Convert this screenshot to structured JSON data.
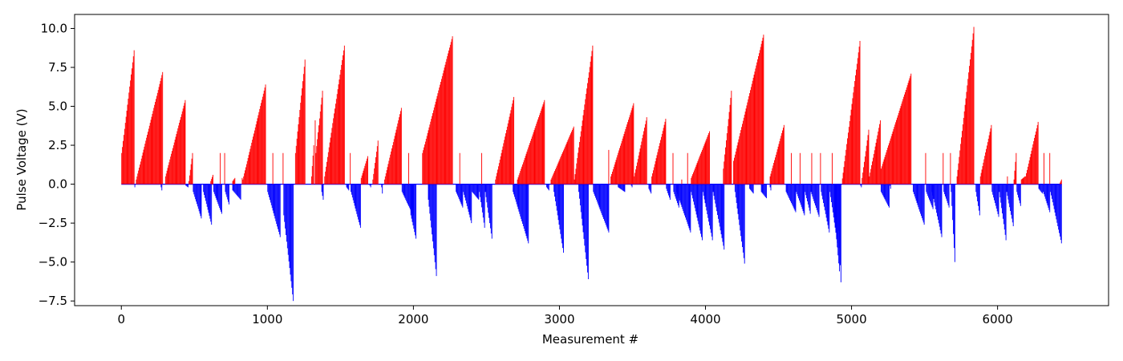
{
  "chart_data": {
    "type": "bar",
    "xlabel": "Measurement #",
    "ylabel": "Pulse Voltage (V)",
    "xlim": [
      -320,
      6760
    ],
    "ylim": [
      -7.8,
      10.9
    ],
    "xticks": [
      0,
      1000,
      2000,
      3000,
      4000,
      5000,
      6000
    ],
    "xtick_labels": [
      "0",
      "1000",
      "2000",
      "3000",
      "4000",
      "5000",
      "6000"
    ],
    "yticks": [
      -7.5,
      -5.0,
      -2.5,
      0.0,
      2.5,
      5.0,
      7.5,
      10.0
    ],
    "ytick_labels": [
      "−7.5",
      "−5.0",
      "−2.5",
      "0.0",
      "2.5",
      "5.0",
      "7.5",
      "10.0"
    ],
    "grid": false,
    "colors": {
      "positive": "#ff0000",
      "negative": "#0000ff",
      "zero_line": "#0000ff"
    },
    "series": [
      {
        "sign": "positive",
        "ramps": [
          [
            0,
            90,
            2.0,
            8.6
          ],
          [
            100,
            285,
            0.3,
            7.2
          ],
          [
            300,
            440,
            0.5,
            5.4
          ],
          [
            460,
            490,
            0.2,
            2.0
          ],
          [
            610,
            630,
            0.2,
            0.6
          ],
          [
            670,
            680,
            0.0,
            2.0
          ],
          [
            700,
            710,
            0.0,
            2.0
          ],
          [
            760,
            780,
            0.2,
            0.4
          ],
          [
            820,
            830,
            0.0,
            0.4
          ],
          [
            830,
            990,
            0.3,
            6.4
          ],
          [
            1030,
            1040,
            0.0,
            2.0
          ],
          [
            1100,
            1110,
            0.0,
            2.0
          ],
          [
            1190,
            1260,
            2.0,
            8.0
          ],
          [
            1300,
            1320,
            0.5,
            2.5
          ],
          [
            1320,
            1330,
            0.0,
            4.1
          ],
          [
            1330,
            1380,
            2.0,
            6.0
          ],
          [
            1390,
            1530,
            0.5,
            8.9
          ],
          [
            1560,
            1570,
            0.0,
            2.0
          ],
          [
            1640,
            1690,
            0.4,
            1.8
          ],
          [
            1720,
            1760,
            0.3,
            2.8
          ],
          [
            1800,
            1920,
            0.3,
            4.9
          ],
          [
            1960,
            1970,
            0.0,
            2.0
          ],
          [
            2060,
            2270,
            2.0,
            9.5
          ],
          [
            2310,
            2320,
            0.0,
            2.0
          ],
          [
            2460,
            2470,
            0.0,
            2.0
          ],
          [
            2560,
            2690,
            0.3,
            5.6
          ],
          [
            2710,
            2900,
            0.3,
            5.4
          ],
          [
            2940,
            3100,
            0.3,
            3.7
          ],
          [
            3100,
            3230,
            0.3,
            8.9
          ],
          [
            3330,
            3340,
            0.0,
            2.2
          ],
          [
            3350,
            3510,
            0.5,
            5.2
          ],
          [
            3510,
            3600,
            0.5,
            4.3
          ],
          [
            3630,
            3730,
            0.5,
            4.2
          ],
          [
            3770,
            3780,
            0.0,
            2.0
          ],
          [
            3830,
            3840,
            0.0,
            0.3
          ],
          [
            3870,
            3880,
            0.0,
            2.0
          ],
          [
            3900,
            4030,
            0.4,
            3.4
          ],
          [
            4120,
            4180,
            1.0,
            6.0
          ],
          [
            4190,
            4400,
            1.5,
            9.6
          ],
          [
            4440,
            4540,
            0.5,
            3.8
          ],
          [
            4580,
            4590,
            0.0,
            2.0
          ],
          [
            4640,
            4650,
            0.0,
            2.0
          ],
          [
            4720,
            4730,
            0.0,
            2.0
          ],
          [
            4780,
            4790,
            0.0,
            2.0
          ],
          [
            4860,
            4870,
            0.0,
            2.0
          ],
          [
            4930,
            5060,
            0.0,
            9.2
          ],
          [
            5070,
            5120,
            0.4,
            3.5
          ],
          [
            5120,
            5200,
            0.5,
            4.1
          ],
          [
            5200,
            5410,
            1.0,
            7.1
          ],
          [
            5500,
            5510,
            0.0,
            2.0
          ],
          [
            5620,
            5630,
            0.0,
            2.0
          ],
          [
            5670,
            5680,
            0.0,
            2.0
          ],
          [
            5720,
            5840,
            0.5,
            10.1
          ],
          [
            5880,
            5960,
            0.5,
            3.8
          ],
          [
            6060,
            6070,
            0.0,
            0.5
          ],
          [
            6110,
            6130,
            0.3,
            2.0
          ],
          [
            6160,
            6190,
            0.3,
            0.5
          ],
          [
            6190,
            6280,
            0.5,
            4.0
          ],
          [
            6310,
            6320,
            0.0,
            2.0
          ],
          [
            6350,
            6360,
            0.0,
            2.0
          ],
          [
            6420,
            6440,
            0.0,
            0.3
          ]
        ]
      },
      {
        "sign": "negative",
        "ramps": [
          [
            90,
            95,
            -0.1,
            -0.2
          ],
          [
            270,
            280,
            -0.2,
            -0.4
          ],
          [
            440,
            460,
            -0.1,
            -0.2
          ],
          [
            490,
            550,
            -0.5,
            -2.2
          ],
          [
            560,
            620,
            -0.5,
            -2.6
          ],
          [
            630,
            690,
            -0.5,
            -1.9
          ],
          [
            710,
            740,
            -0.5,
            -1.3
          ],
          [
            760,
            820,
            -0.4,
            -1.0
          ],
          [
            1000,
            1090,
            -0.5,
            -3.4
          ],
          [
            1110,
            1180,
            -2.0,
            -7.5
          ],
          [
            1370,
            1385,
            -0.5,
            -1.0
          ],
          [
            1540,
            1560,
            -0.2,
            -0.4
          ],
          [
            1570,
            1640,
            -0.5,
            -2.8
          ],
          [
            1700,
            1710,
            -0.1,
            -0.2
          ],
          [
            1780,
            1790,
            -0.2,
            -0.6
          ],
          [
            1920,
            2000,
            -0.5,
            -2.0
          ],
          [
            1980,
            2020,
            -2.0,
            -3.5
          ],
          [
            2100,
            2160,
            -1.0,
            -5.9
          ],
          [
            2290,
            2340,
            -0.5,
            -1.5
          ],
          [
            2340,
            2400,
            -0.5,
            -2.5
          ],
          [
            2400,
            2450,
            -0.5,
            -1.0
          ],
          [
            2450,
            2490,
            -0.5,
            -2.8
          ],
          [
            2490,
            2540,
            -0.5,
            -3.5
          ],
          [
            2680,
            2790,
            -0.5,
            -3.8
          ],
          [
            2910,
            2930,
            -0.2,
            -0.4
          ],
          [
            2960,
            3030,
            -0.5,
            -4.4
          ],
          [
            3130,
            3200,
            -0.5,
            -6.1
          ],
          [
            3230,
            3340,
            -0.5,
            -3.1
          ],
          [
            3400,
            3450,
            -0.2,
            -0.5
          ],
          [
            3490,
            3500,
            -0.1,
            -0.2
          ],
          [
            3610,
            3630,
            -0.3,
            -0.6
          ],
          [
            3730,
            3760,
            -0.3,
            -1.0
          ],
          [
            3780,
            3820,
            -0.5,
            -1.5
          ],
          [
            3800,
            3900,
            -0.5,
            -3.1
          ],
          [
            3900,
            3980,
            -0.5,
            -3.6
          ],
          [
            3980,
            4050,
            -0.5,
            -3.6
          ],
          [
            4050,
            4130,
            -0.5,
            -4.2
          ],
          [
            4200,
            4270,
            -0.5,
            -5.1
          ],
          [
            4300,
            4330,
            -0.3,
            -0.6
          ],
          [
            4380,
            4420,
            -0.5,
            -0.9
          ],
          [
            4440,
            4450,
            -0.2,
            -0.4
          ],
          [
            4550,
            4620,
            -0.5,
            -1.8
          ],
          [
            4620,
            4680,
            -0.5,
            -2.0
          ],
          [
            4680,
            4720,
            -0.5,
            -1.9
          ],
          [
            4720,
            4780,
            -0.5,
            -2.1
          ],
          [
            4790,
            4850,
            -0.5,
            -3.1
          ],
          [
            4850,
            4910,
            -0.5,
            -4.1
          ],
          [
            4910,
            4930,
            -3.0,
            -6.3
          ],
          [
            4880,
            4920,
            -2.0,
            -5.6
          ],
          [
            5060,
            5070,
            -0.1,
            -0.2
          ],
          [
            5200,
            5260,
            -0.5,
            -1.5
          ],
          [
            5260,
            5270,
            -0.1,
            -0.3
          ],
          [
            5420,
            5500,
            -0.5,
            -2.6
          ],
          [
            5510,
            5560,
            -0.5,
            -1.6
          ],
          [
            5550,
            5620,
            -0.5,
            -3.4
          ],
          [
            5630,
            5670,
            -0.5,
            -1.5
          ],
          [
            5680,
            5710,
            -0.5,
            -5.0
          ],
          [
            5850,
            5880,
            -0.5,
            -2.0
          ],
          [
            5960,
            6010,
            -0.5,
            -2.1
          ],
          [
            6010,
            6060,
            -0.5,
            -3.6
          ],
          [
            6060,
            6110,
            -0.5,
            -2.7
          ],
          [
            6130,
            6160,
            -0.5,
            -1.4
          ],
          [
            6280,
            6310,
            -0.3,
            -0.6
          ],
          [
            6310,
            6360,
            -0.5,
            -1.8
          ],
          [
            6360,
            6440,
            -0.5,
            -3.8
          ]
        ]
      }
    ]
  }
}
